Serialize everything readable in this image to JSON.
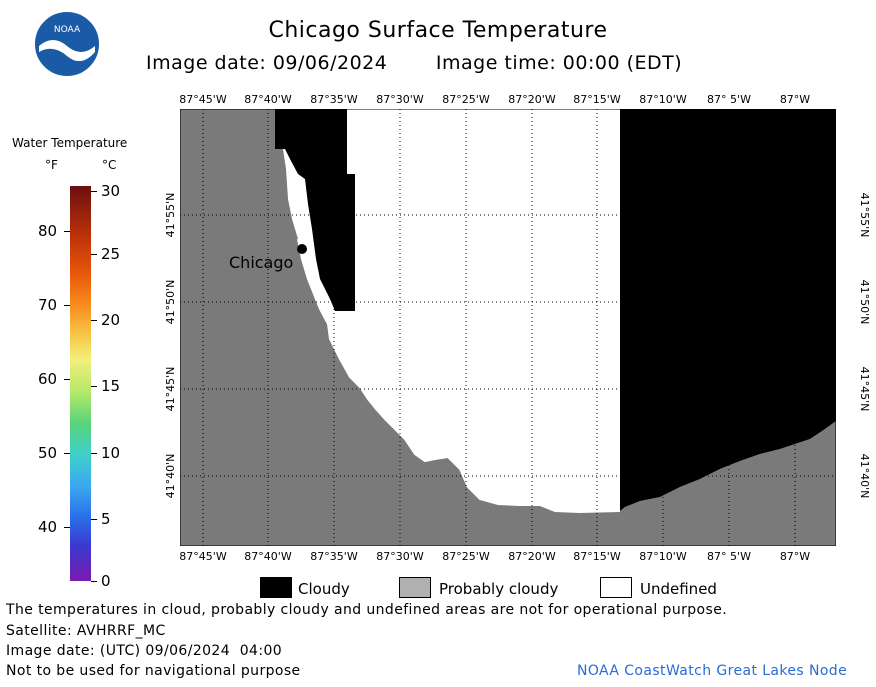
{
  "header": {
    "title": "Chicago Surface Temperature",
    "image_date": "Image date: 09/06/2024",
    "image_time": "Image time: 00:00 (EDT)",
    "logo_text": "NOAA"
  },
  "colorbar": {
    "title": "Water Temperature",
    "unit_f": "°F",
    "unit_c": "°C",
    "f_ticks": [
      "80",
      "70",
      "60",
      "50",
      "40"
    ],
    "c_ticks": [
      "30",
      "25",
      "20",
      "15",
      "10",
      "5",
      "0"
    ]
  },
  "map": {
    "longitude_labels": [
      "87°45'W",
      "87°40'W",
      "87°35'W",
      "87°30'W",
      "87°25'W",
      "87°20'W",
      "87°15'W",
      "87°10'W",
      "87° 5'W",
      "87°W"
    ],
    "latitude_labels": [
      "41°55'N",
      "41°50'N",
      "41°45'N",
      "41°40'N"
    ],
    "city_label": "Chicago",
    "colors": {
      "land": "#7a7a7a",
      "cloudy": "#000000",
      "undefined": "#ffffff",
      "grid": "#000000"
    }
  },
  "legend": {
    "cloudy": "Cloudy",
    "probably_cloudy": "Probably cloudy",
    "undefined": "Undefined"
  },
  "footer": {
    "disclaimer": "The temperatures in cloud, probably cloudy and undefined areas are not for operational purpose.",
    "satellite": "Satellite: AVHRRF_MC",
    "utc_date": "Image date: (UTC) 09/06/2024  04:00",
    "navigation": "Not to be used for navigational purpose",
    "credit": "NOAA CoastWatch Great Lakes Node"
  }
}
